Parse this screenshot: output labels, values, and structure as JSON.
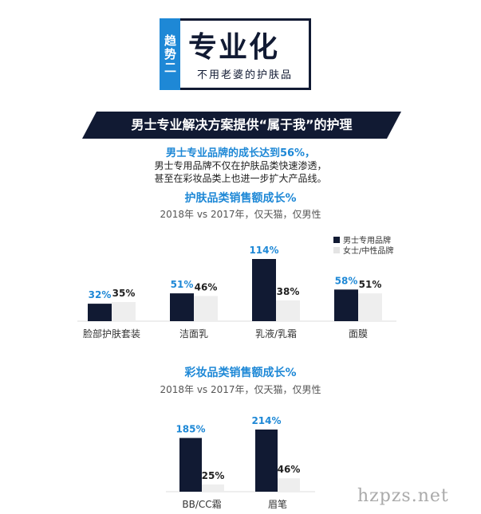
{
  "header": {
    "tag": "趋势二",
    "title": "专业化",
    "subtitle": "不用老婆的护肤品"
  },
  "banner": "男士专业解决方案提供“属于我”的护理",
  "headline": "男士专业品牌的成长达到56%，",
  "desc_line1": "男士专用品牌不仅在护肤品类快速渗透，",
  "desc_line2": "甚至在彩妆品类上也进一步扩大产品线。",
  "colors": {
    "men": "#111a33",
    "unisex": "#eeeeee",
    "accent": "#1e88d6"
  },
  "legend": {
    "men": "男士专用品牌",
    "unisex": "女士/中性品牌"
  },
  "watermark": "hzpzs.net",
  "chart_data": [
    {
      "type": "bar",
      "title": "护肤品类销售额成长%",
      "subtitle": "2018年 vs 2017年，仅天猫，仅男性",
      "categories": [
        "脸部护肤套装",
        "洁面乳",
        "乳液/乳霜",
        "面膜"
      ],
      "series": [
        {
          "name": "男士专用品牌",
          "values": [
            32,
            51,
            114,
            58
          ],
          "labels": [
            "32%",
            "51%",
            "114%",
            "58%"
          ]
        },
        {
          "name": "女士/中性品牌",
          "values": [
            35,
            46,
            38,
            51
          ],
          "labels": [
            "35%",
            "46%",
            "38%",
            "51%"
          ]
        }
      ],
      "ylim": [
        0,
        114
      ],
      "legend_position": "top-right"
    },
    {
      "type": "bar",
      "title": "彩妆品类销售额成长%",
      "subtitle": "2018年 vs 2017年，仅天猫，仅男性",
      "categories": [
        "BB/CC霜",
        "眉笔"
      ],
      "series": [
        {
          "name": "男士专用品牌",
          "values": [
            185,
            214
          ],
          "labels": [
            "185%",
            "214%"
          ]
        },
        {
          "name": "女士/中性品牌",
          "values": [
            25,
            46
          ],
          "labels": [
            "25%",
            "46%"
          ]
        }
      ],
      "ylim": [
        0,
        214
      ]
    }
  ]
}
